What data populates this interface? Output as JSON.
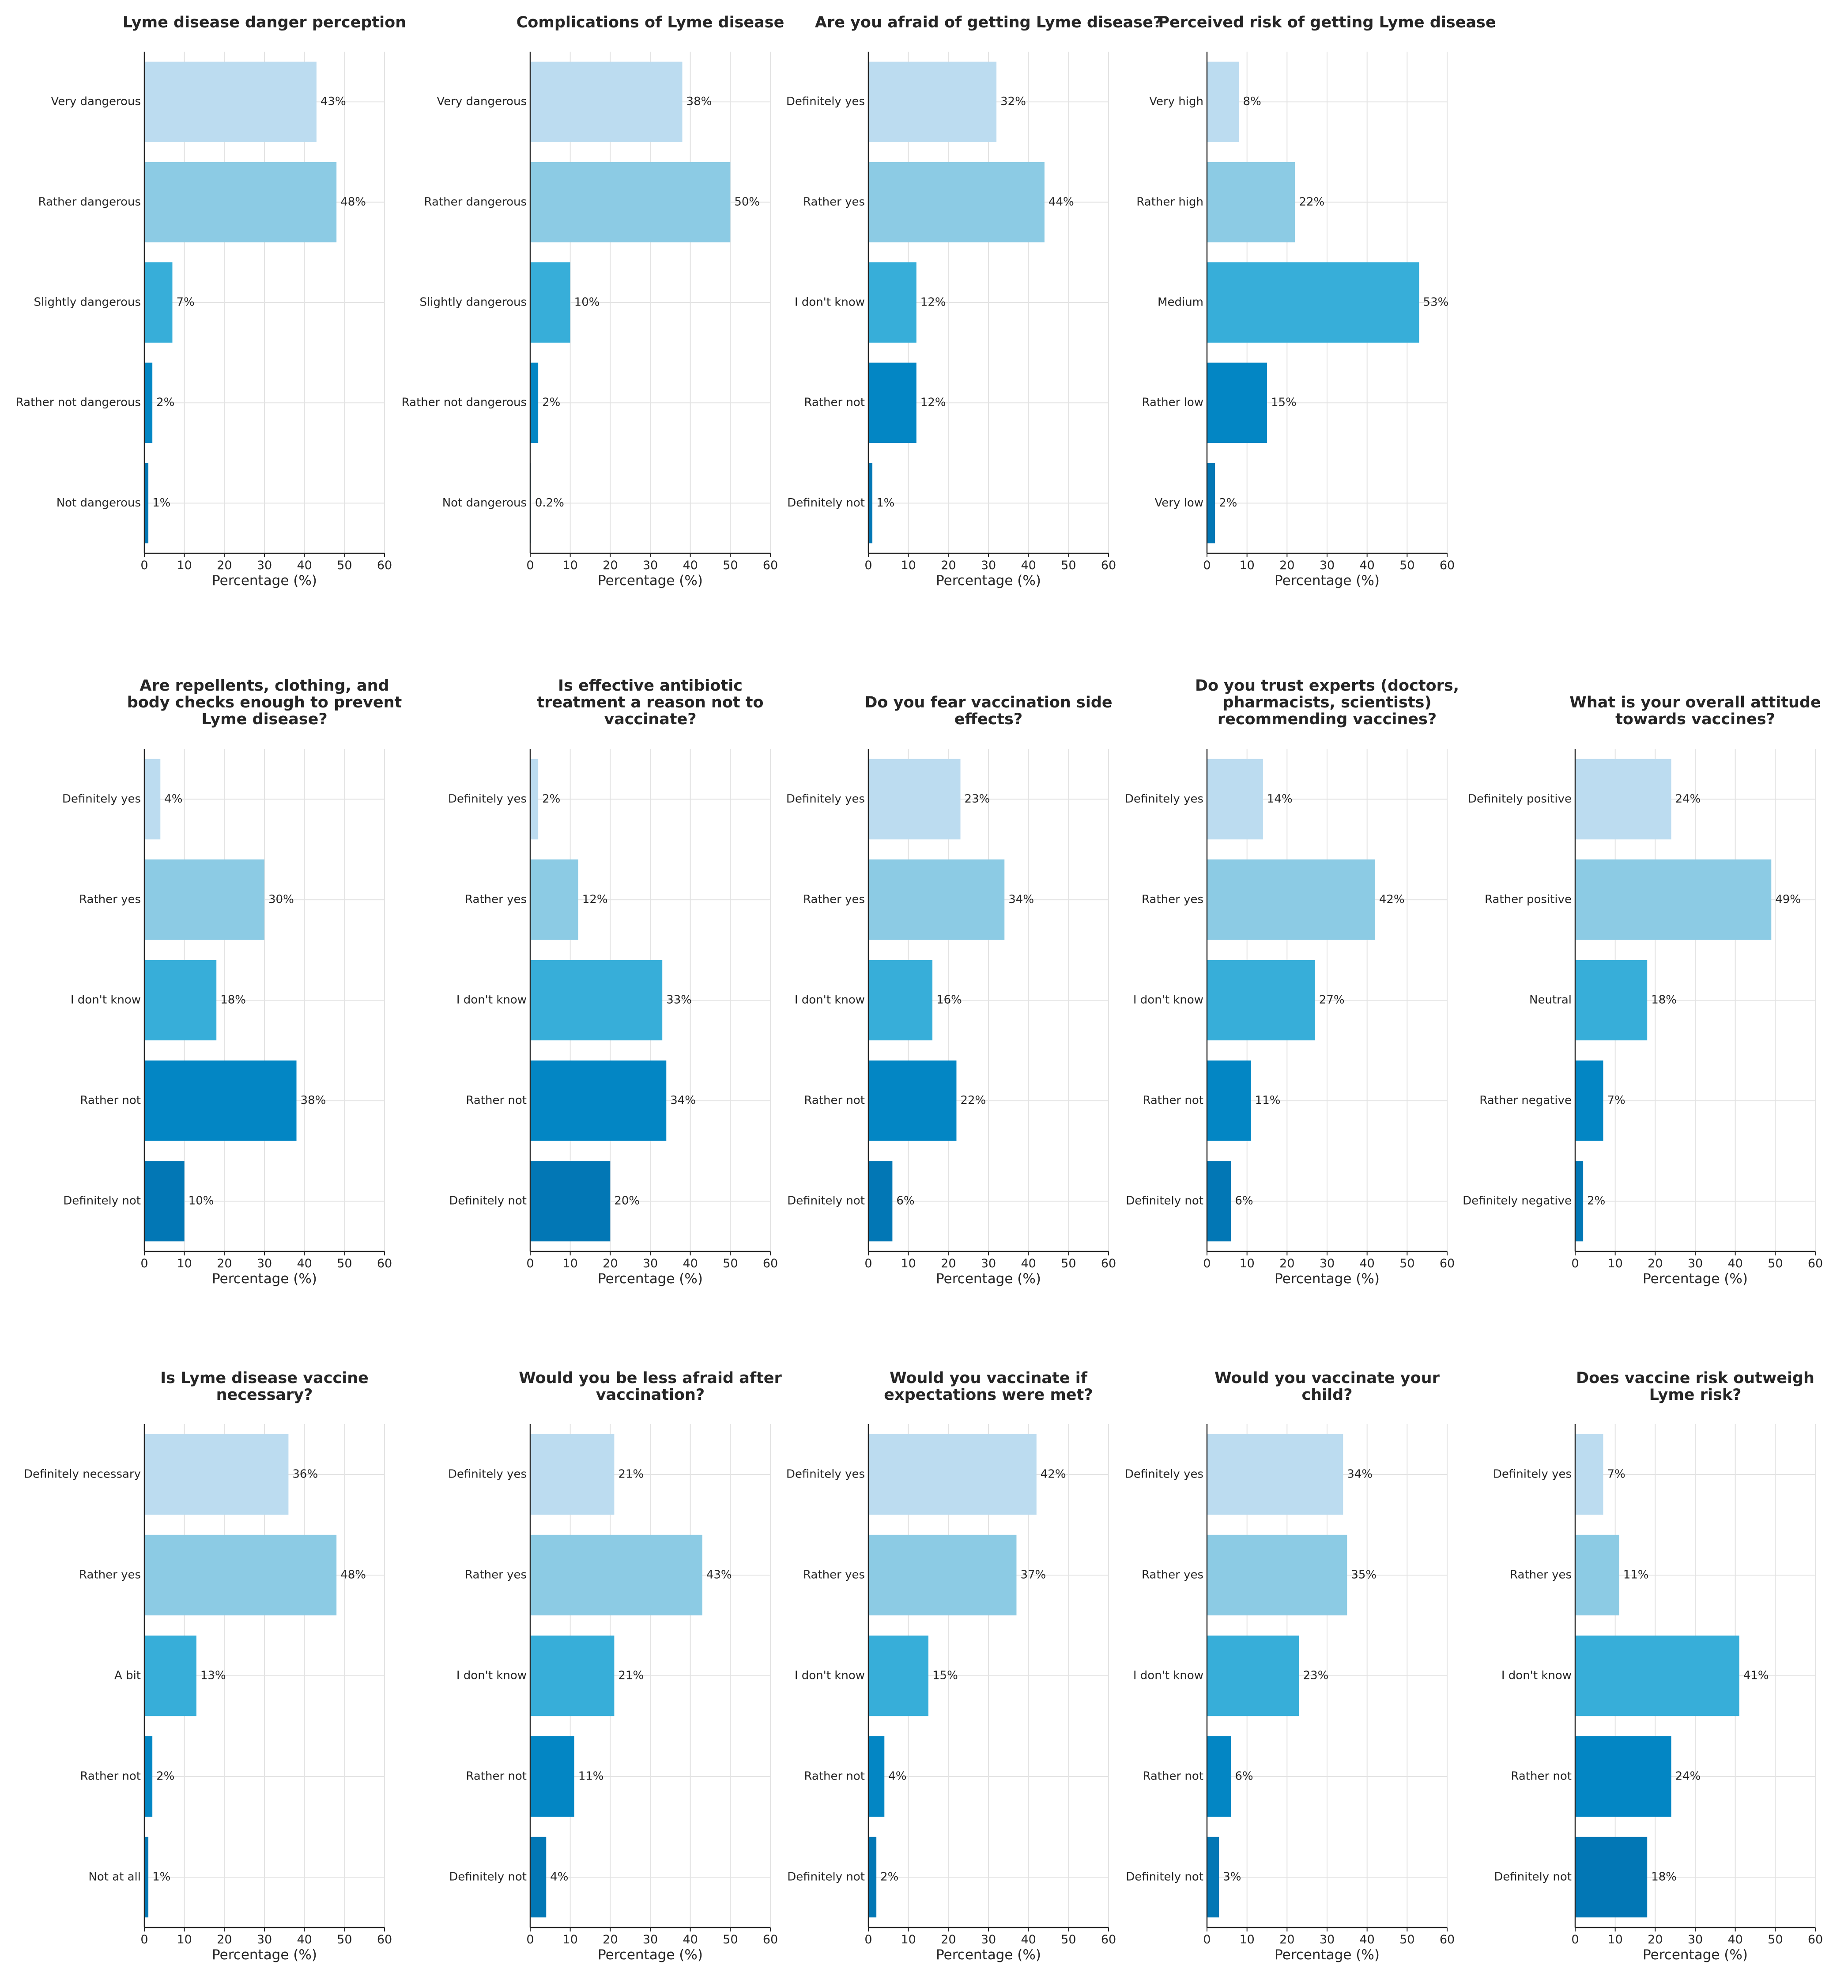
{
  "colors": [
    "#bcdcf0",
    "#8ccbe4",
    "#37aed9",
    "#0386c4",
    "#0277b5"
  ],
  "chart_data": [
    {
      "type": "bar",
      "orientation": "horizontal",
      "title": [
        "Lyme disease danger perception"
      ],
      "categories": [
        "Very dangerous",
        "Rather dangerous",
        "Slightly dangerous",
        "Rather not dangerous",
        "Not dangerous"
      ],
      "values": [
        43,
        48,
        7,
        2,
        1
      ],
      "labels": [
        "43%",
        "48%",
        "7%",
        "2%",
        "1%"
      ],
      "xlabel": "Percentage (%)",
      "xlim": [
        0,
        60
      ],
      "xticks": [
        "0",
        "10",
        "20",
        "30",
        "40",
        "50",
        "60"
      ]
    },
    {
      "type": "bar",
      "orientation": "horizontal",
      "title": [
        "Complications of Lyme disease"
      ],
      "categories": [
        "Very dangerous",
        "Rather dangerous",
        "Slightly dangerous",
        "Rather not dangerous",
        "Not dangerous"
      ],
      "values": [
        38,
        50,
        10,
        2,
        0.2
      ],
      "labels": [
        "38%",
        "50%",
        "10%",
        "2%",
        "0.2%"
      ],
      "xlabel": "Percentage (%)",
      "xlim": [
        0,
        60
      ],
      "xticks": [
        "0",
        "10",
        "20",
        "30",
        "40",
        "50",
        "60"
      ]
    },
    {
      "type": "bar",
      "orientation": "horizontal",
      "title": [
        "Are you afraid of getting Lyme disease?"
      ],
      "categories": [
        "Definitely yes",
        "Rather yes",
        "I don't know",
        "Rather not",
        "Definitely not"
      ],
      "values": [
        32,
        44,
        12,
        12,
        1
      ],
      "labels": [
        "32%",
        "44%",
        "12%",
        "12%",
        "1%"
      ],
      "xlabel": "Percentage (%)",
      "xlim": [
        0,
        60
      ],
      "xticks": [
        "0",
        "10",
        "20",
        "30",
        "40",
        "50",
        "60"
      ]
    },
    {
      "type": "bar",
      "orientation": "horizontal",
      "title": [
        "Perceived risk of getting Lyme disease"
      ],
      "categories": [
        "Very high",
        "Rather high",
        "Medium",
        "Rather low",
        "Very low"
      ],
      "values": [
        8,
        22,
        53,
        15,
        2
      ],
      "labels": [
        "8%",
        "22%",
        "53%",
        "15%",
        "2%"
      ],
      "xlabel": "Percentage (%)",
      "xlim": [
        0,
        60
      ],
      "xticks": [
        "0",
        "10",
        "20",
        "30",
        "40",
        "50",
        "60"
      ]
    },
    {
      "type": "bar",
      "orientation": "horizontal",
      "title": [
        "Are repellents, clothing, and",
        "body checks enough to prevent",
        "Lyme disease?"
      ],
      "categories": [
        "Definitely yes",
        "Rather yes",
        "I don't know",
        "Rather not",
        "Definitely not"
      ],
      "values": [
        4,
        30,
        18,
        38,
        10
      ],
      "labels": [
        "4%",
        "30%",
        "18%",
        "38%",
        "10%"
      ],
      "xlabel": "Percentage (%)",
      "xlim": [
        0,
        60
      ],
      "xticks": [
        "0",
        "10",
        "20",
        "30",
        "40",
        "50",
        "60"
      ]
    },
    {
      "type": "bar",
      "orientation": "horizontal",
      "title": [
        "Is effective antibiotic",
        "treatment a reason not to",
        "vaccinate?"
      ],
      "categories": [
        "Definitely yes",
        "Rather yes",
        "I don't know",
        "Rather not",
        "Definitely not"
      ],
      "values": [
        2,
        12,
        33,
        34,
        20
      ],
      "labels": [
        "2%",
        "12%",
        "33%",
        "34%",
        "20%"
      ],
      "xlabel": "Percentage (%)",
      "xlim": [
        0,
        60
      ],
      "xticks": [
        "0",
        "10",
        "20",
        "30",
        "40",
        "50",
        "60"
      ]
    },
    {
      "type": "bar",
      "orientation": "horizontal",
      "title": [
        "Do you fear vaccination side",
        "effects?"
      ],
      "categories": [
        "Definitely yes",
        "Rather yes",
        "I don't know",
        "Rather not",
        "Definitely not"
      ],
      "values": [
        23,
        34,
        16,
        22,
        6
      ],
      "labels": [
        "23%",
        "34%",
        "16%",
        "22%",
        "6%"
      ],
      "xlabel": "Percentage (%)",
      "xlim": [
        0,
        60
      ],
      "xticks": [
        "0",
        "10",
        "20",
        "30",
        "40",
        "50",
        "60"
      ]
    },
    {
      "type": "bar",
      "orientation": "horizontal",
      "title": [
        "Do you trust experts (doctors,",
        "pharmacists, scientists)",
        "recommending vaccines?"
      ],
      "categories": [
        "Definitely yes",
        "Rather yes",
        "I don't know",
        "Rather not",
        "Definitely not"
      ],
      "values": [
        14,
        42,
        27,
        11,
        6
      ],
      "labels": [
        "14%",
        "42%",
        "27%",
        "11%",
        "6%"
      ],
      "xlabel": "Percentage (%)",
      "xlim": [
        0,
        60
      ],
      "xticks": [
        "0",
        "10",
        "20",
        "30",
        "40",
        "50",
        "60"
      ]
    },
    {
      "type": "bar",
      "orientation": "horizontal",
      "title": [
        "What is your overall attitude",
        "towards vaccines?"
      ],
      "categories": [
        "Definitely positive",
        "Rather positive",
        "Neutral",
        "Rather negative",
        "Definitely negative"
      ],
      "values": [
        24,
        49,
        18,
        7,
        2
      ],
      "labels": [
        "24%",
        "49%",
        "18%",
        "7%",
        "2%"
      ],
      "xlabel": "Percentage (%)",
      "xlim": [
        0,
        60
      ],
      "xticks": [
        "0",
        "10",
        "20",
        "30",
        "40",
        "50",
        "60"
      ]
    },
    {
      "type": "bar",
      "orientation": "horizontal",
      "title": [
        "Is Lyme disease vaccine",
        "necessary?"
      ],
      "categories": [
        "Definitely necessary",
        "Rather yes",
        "A bit",
        "Rather not",
        "Not at all"
      ],
      "values": [
        36,
        48,
        13,
        2,
        1
      ],
      "labels": [
        "36%",
        "48%",
        "13%",
        "2%",
        "1%"
      ],
      "xlabel": "Percentage (%)",
      "xlim": [
        0,
        60
      ],
      "xticks": [
        "0",
        "10",
        "20",
        "30",
        "40",
        "50",
        "60"
      ]
    },
    {
      "type": "bar",
      "orientation": "horizontal",
      "title": [
        "Would you be less afraid after",
        "vaccination?"
      ],
      "categories": [
        "Definitely yes",
        "Rather yes",
        "I don't know",
        "Rather not",
        "Definitely not"
      ],
      "values": [
        21,
        43,
        21,
        11,
        4
      ],
      "labels": [
        "21%",
        "43%",
        "21%",
        "11%",
        "4%"
      ],
      "xlabel": "Percentage (%)",
      "xlim": [
        0,
        60
      ],
      "xticks": [
        "0",
        "10",
        "20",
        "30",
        "40",
        "50",
        "60"
      ]
    },
    {
      "type": "bar",
      "orientation": "horizontal",
      "title": [
        "Would you vaccinate if",
        "expectations were met?"
      ],
      "categories": [
        "Definitely yes",
        "Rather yes",
        "I don't know",
        "Rather not",
        "Definitely not"
      ],
      "values": [
        42,
        37,
        15,
        4,
        2
      ],
      "labels": [
        "42%",
        "37%",
        "15%",
        "4%",
        "2%"
      ],
      "xlabel": "Percentage (%)",
      "xlim": [
        0,
        60
      ],
      "xticks": [
        "0",
        "10",
        "20",
        "30",
        "40",
        "50",
        "60"
      ]
    },
    {
      "type": "bar",
      "orientation": "horizontal",
      "title": [
        "Would you vaccinate your",
        "child?"
      ],
      "categories": [
        "Definitely yes",
        "Rather yes",
        "I don't know",
        "Rather not",
        "Definitely not"
      ],
      "values": [
        34,
        35,
        23,
        6,
        3
      ],
      "labels": [
        "34%",
        "35%",
        "23%",
        "6%",
        "3%"
      ],
      "xlabel": "Percentage (%)",
      "xlim": [
        0,
        60
      ],
      "xticks": [
        "0",
        "10",
        "20",
        "30",
        "40",
        "50",
        "60"
      ]
    },
    {
      "type": "bar",
      "orientation": "horizontal",
      "title": [
        "Does vaccine risk outweigh",
        "Lyme risk?"
      ],
      "categories": [
        "Definitely yes",
        "Rather yes",
        "I don't know",
        "Rather not",
        "Definitely not"
      ],
      "values": [
        7,
        11,
        41,
        24,
        18
      ],
      "labels": [
        "7%",
        "11%",
        "41%",
        "24%",
        "18%"
      ],
      "xlabel": "Percentage (%)",
      "xlim": [
        0,
        60
      ],
      "xticks": [
        "0",
        "10",
        "20",
        "30",
        "40",
        "50",
        "60"
      ]
    }
  ]
}
